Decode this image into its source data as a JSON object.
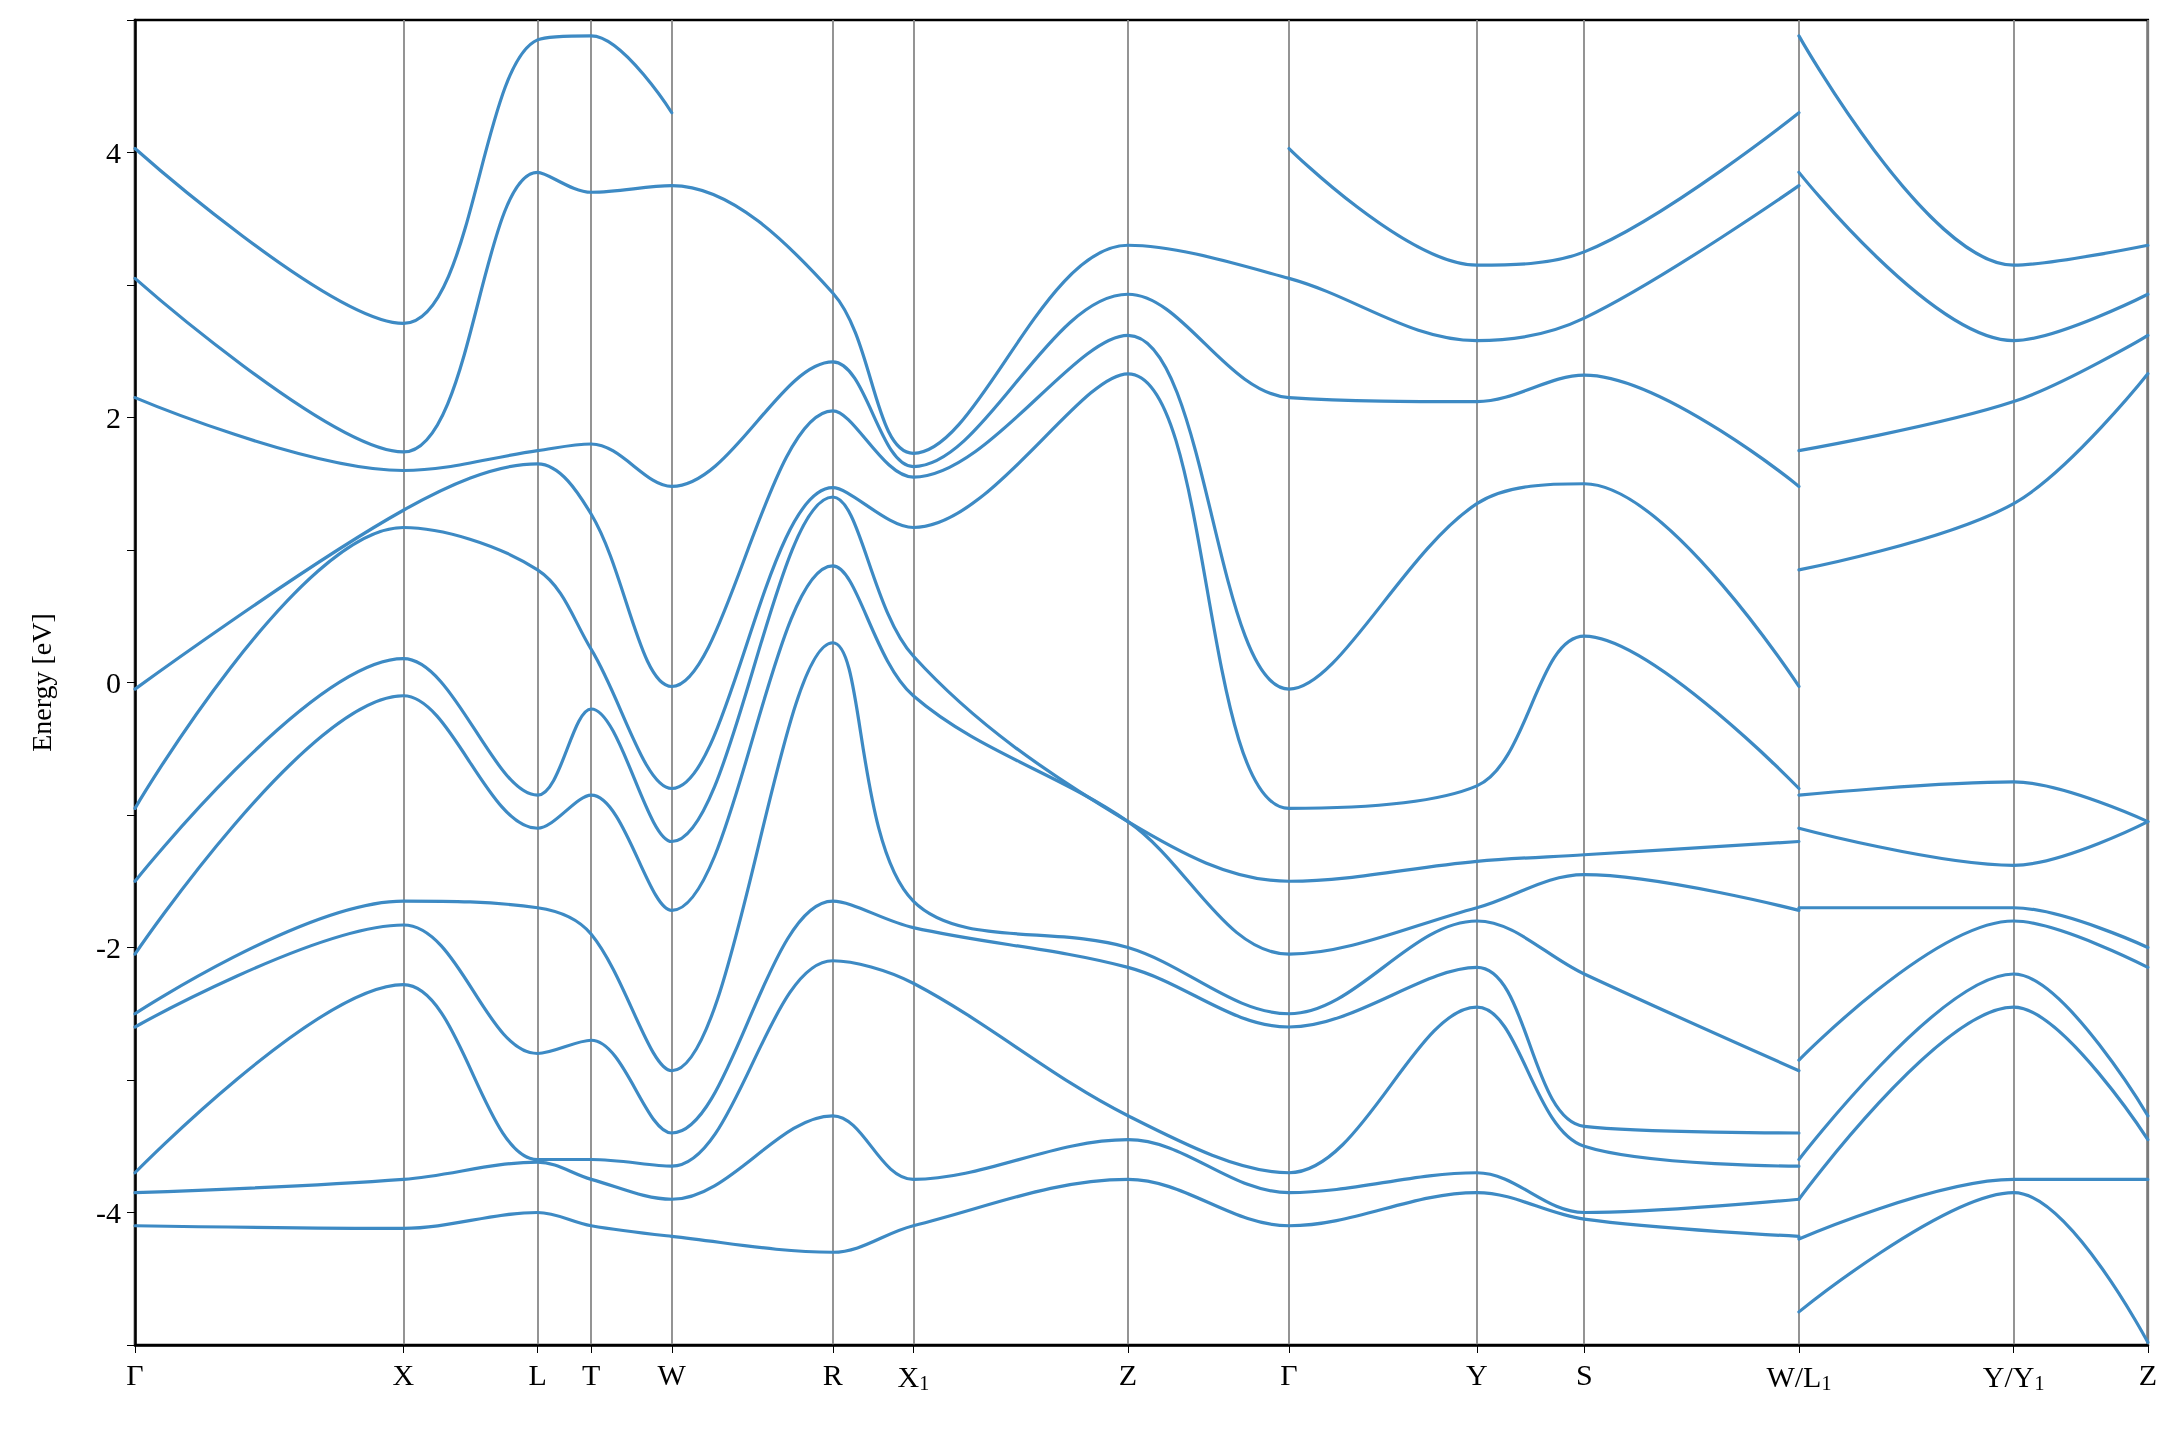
{
  "chart_data": {
    "type": "line",
    "ylabel": "Energy [eV]",
    "ylim": [
      -5,
      5
    ],
    "categories": [
      "Γ",
      null,
      null,
      null,
      null,
      null,
      null,
      null,
      null,
      null,
      "X",
      null,
      null,
      null,
      null,
      "L",
      null,
      "T",
      null,
      null,
      "W",
      null,
      null,
      null,
      null,
      null,
      "R",
      null,
      null,
      "X$_{1}$",
      null,
      null,
      null,
      null,
      null,
      null,
      null,
      "Z",
      null,
      null,
      null,
      null,
      null,
      "Γ",
      null,
      null,
      null,
      null,
      null,
      null,
      "Y",
      null,
      null,
      null,
      "S",
      null,
      null,
      null,
      null,
      null,
      null,
      null,
      "W/L$_{1}$",
      null,
      null,
      null,
      null,
      null,
      null,
      null,
      "Y/Y$_{1}$",
      null,
      null,
      null,
      null,
      "Z"
    ],
    "yticks": [
      {
        "value": -5,
        "label": null
      },
      -4,
      {
        "value": -3,
        "label": null
      },
      -2,
      {
        "value": -1,
        "label": null
      },
      0,
      {
        "value": 1,
        "label": null
      },
      2,
      {
        "value": 3,
        "label": null
      },
      4,
      {
        "value": 5,
        "label": null
      }
    ],
    "grid": "x",
    "marker": "none",
    "line_style": "solid",
    "series": [
      {
        "color": "#3d8ac4",
        "values": [
          -4.1,
          null,
          null,
          null,
          null,
          null,
          null,
          null,
          null,
          null,
          -4.12,
          null,
          null,
          null,
          null,
          -4.0,
          null,
          -4.1,
          null,
          null,
          -4.18,
          null,
          null,
          null,
          null,
          null,
          -4.3,
          null,
          null,
          -4.1,
          null,
          null,
          null,
          null,
          null,
          null,
          null,
          -3.75,
          null,
          null,
          null,
          null,
          null,
          -4.1,
          null,
          null,
          null,
          null,
          null,
          null,
          -3.85,
          null,
          null,
          null,
          -4.05,
          null,
          null,
          null,
          null,
          null,
          null,
          null,
          -4.18,
          null,
          null,
          null,
          null,
          null,
          null,
          null,
          null,
          null,
          null,
          null,
          null,
          null
        ]
      },
      {
        "color": "#3d8ac4",
        "values": [
          -3.85,
          null,
          null,
          null,
          null,
          null,
          null,
          null,
          null,
          null,
          -3.75,
          null,
          null,
          null,
          null,
          -3.62,
          null,
          -3.75,
          null,
          null,
          -3.9,
          null,
          null,
          null,
          null,
          null,
          -3.27,
          null,
          null,
          -3.75,
          null,
          null,
          null,
          null,
          null,
          null,
          null,
          -3.45,
          null,
          null,
          null,
          null,
          null,
          -3.85,
          null,
          null,
          null,
          null,
          null,
          null,
          -3.7,
          null,
          null,
          null,
          -4.0,
          null,
          null,
          null,
          null,
          null,
          null,
          null,
          -3.9,
          null,
          null,
          null,
          null,
          null,
          null,
          null,
          null,
          null,
          null,
          null,
          null,
          null
        ]
      },
      {
        "color": "#3d8ac4",
        "values": [
          -3.7,
          null,
          null,
          null,
          null,
          null,
          null,
          null,
          null,
          null,
          -2.28,
          null,
          null,
          null,
          null,
          -3.6,
          null,
          -3.6,
          null,
          null,
          -3.65,
          null,
          null,
          null,
          null,
          null,
          -2.1,
          null,
          null,
          -2.27,
          null,
          null,
          null,
          null,
          null,
          null,
          null,
          -3.27,
          null,
          null,
          null,
          null,
          null,
          -3.7,
          null,
          null,
          null,
          null,
          null,
          null,
          -2.45,
          null,
          null,
          null,
          -3.5,
          null,
          null,
          null,
          null,
          null,
          null,
          null,
          -3.65,
          null,
          null,
          null,
          null,
          null,
          null,
          null,
          null,
          null,
          null,
          null,
          null,
          null
        ]
      },
      {
        "color": "#3d8ac4",
        "values": [
          -2.6,
          null,
          null,
          null,
          null,
          null,
          null,
          null,
          null,
          null,
          -1.83,
          null,
          null,
          null,
          null,
          -2.8,
          null,
          -2.7,
          null,
          null,
          -3.4,
          null,
          null,
          null,
          null,
          null,
          -1.65,
          null,
          null,
          -1.85,
          null,
          null,
          null,
          null,
          null,
          null,
          null,
          -2.15,
          null,
          null,
          null,
          null,
          null,
          -2.6,
          null,
          null,
          null,
          null,
          null,
          null,
          -2.15,
          null,
          null,
          null,
          -3.35,
          null,
          null,
          null,
          null,
          null,
          null,
          null,
          -3.4,
          null,
          null,
          null,
          null,
          null,
          null,
          null,
          null,
          null,
          null,
          null,
          null,
          null
        ]
      },
      {
        "color": "#3d8ac4",
        "values": [
          -2.5,
          null,
          null,
          null,
          null,
          null,
          null,
          null,
          null,
          null,
          -1.65,
          null,
          null,
          null,
          null,
          -1.7,
          null,
          -1.9,
          null,
          null,
          -2.93,
          null,
          null,
          null,
          null,
          null,
          0.3,
          null,
          null,
          -1.65,
          null,
          null,
          null,
          null,
          null,
          null,
          null,
          -2.0,
          null,
          null,
          null,
          null,
          null,
          -2.5,
          null,
          null,
          null,
          null,
          null,
          null,
          -1.8,
          null,
          null,
          null,
          -2.2,
          null,
          null,
          null,
          null,
          null,
          null,
          null,
          -2.93,
          null,
          null,
          null,
          null,
          null,
          null,
          null,
          null,
          null,
          null,
          null,
          null,
          null
        ]
      },
      {
        "color": "#3d8ac4",
        "values": [
          -2.05,
          null,
          null,
          null,
          null,
          null,
          null,
          null,
          null,
          null,
          -0.1,
          null,
          null,
          null,
          null,
          -1.1,
          null,
          -0.85,
          null,
          null,
          -1.72,
          null,
          null,
          null,
          null,
          null,
          0.88,
          null,
          null,
          -0.1,
          null,
          null,
          null,
          null,
          null,
          null,
          null,
          -1.05,
          null,
          null,
          null,
          null,
          null,
          -2.05,
          null,
          null,
          null,
          null,
          null,
          null,
          -1.7,
          null,
          null,
          null,
          -1.45,
          null,
          null,
          null,
          null,
          null,
          null,
          null,
          -1.72,
          null,
          null,
          null,
          null,
          null,
          null,
          null,
          null,
          null,
          null,
          null,
          null,
          null
        ]
      },
      {
        "color": "#3d8ac4",
        "values": [
          -1.5,
          null,
          null,
          null,
          null,
          null,
          null,
          null,
          null,
          null,
          0.18,
          null,
          null,
          null,
          null,
          -0.85,
          null,
          -0.2,
          null,
          null,
          -1.2,
          null,
          null,
          null,
          null,
          null,
          1.4,
          null,
          null,
          0.2,
          null,
          null,
          null,
          null,
          null,
          null,
          null,
          -1.05,
          null,
          null,
          null,
          null,
          null,
          -1.5,
          null,
          null,
          null,
          null,
          null,
          null,
          -1.35,
          null,
          null,
          null,
          -1.3,
          null,
          null,
          null,
          null,
          null,
          null,
          null,
          -1.2,
          null,
          null,
          null,
          null,
          null,
          null,
          null,
          null,
          null,
          null,
          null,
          null,
          null
        ]
      },
      {
        "color": "#3d8ac4",
        "values": [
          -0.95,
          null,
          null,
          null,
          null,
          null,
          null,
          null,
          null,
          null,
          1.17,
          null,
          null,
          null,
          null,
          0.85,
          null,
          0.25,
          null,
          null,
          -0.8,
          null,
          null,
          null,
          null,
          null,
          1.47,
          null,
          null,
          1.17,
          null,
          null,
          null,
          null,
          null,
          null,
          null,
          2.33,
          null,
          null,
          null,
          null,
          null,
          -0.95,
          null,
          null,
          null,
          null,
          null,
          null,
          -0.78,
          null,
          null,
          null,
          0.35,
          null,
          null,
          null,
          null,
          null,
          null,
          null,
          -0.8,
          null,
          null,
          null,
          null,
          null,
          null,
          null,
          null,
          null,
          null,
          null,
          null,
          null
        ]
      },
      {
        "color": "#3d8ac4",
        "values": [
          -0.05,
          null,
          null,
          null,
          null,
          null,
          null,
          null,
          null,
          null,
          1.3,
          null,
          null,
          null,
          null,
          1.65,
          null,
          1.27,
          null,
          null,
          -0.03,
          null,
          null,
          null,
          null,
          null,
          2.05,
          null,
          null,
          1.55,
          null,
          null,
          null,
          null,
          null,
          null,
          null,
          2.62,
          null,
          null,
          null,
          null,
          null,
          -0.05,
          null,
          null,
          null,
          null,
          null,
          null,
          1.35,
          null,
          null,
          null,
          1.5,
          null,
          null,
          null,
          null,
          null,
          null,
          null,
          -0.03,
          null,
          null,
          null,
          null,
          null,
          null,
          null,
          null,
          null,
          null,
          null,
          null,
          null
        ]
      },
      {
        "color": "#3d8ac4",
        "values": [
          2.15,
          null,
          null,
          null,
          null,
          null,
          null,
          null,
          null,
          null,
          1.6,
          null,
          null,
          null,
          null,
          1.75,
          null,
          1.8,
          null,
          null,
          1.48,
          null,
          null,
          null,
          null,
          null,
          2.42,
          null,
          null,
          1.63,
          null,
          null,
          null,
          null,
          null,
          null,
          null,
          2.93,
          null,
          null,
          null,
          null,
          null,
          2.15,
          null,
          null,
          null,
          null,
          null,
          null,
          2.12,
          null,
          null,
          null,
          2.32,
          null,
          null,
          null,
          null,
          null,
          null,
          null,
          1.48,
          null,
          null,
          null,
          null,
          null,
          null,
          null,
          null,
          null,
          null,
          null,
          null,
          null
        ]
      },
      {
        "color": "#3d8ac4",
        "values": [
          3.05,
          null,
          null,
          null,
          null,
          null,
          null,
          null,
          null,
          null,
          1.74,
          null,
          null,
          null,
          null,
          3.85,
          null,
          3.7,
          null,
          null,
          3.75,
          null,
          null,
          null,
          null,
          null,
          2.94,
          null,
          null,
          1.73,
          null,
          null,
          null,
          null,
          null,
          null,
          null,
          3.3,
          null,
          null,
          null,
          null,
          null,
          3.05,
          null,
          null,
          null,
          null,
          null,
          null,
          2.58,
          null,
          null,
          null,
          2.75,
          null,
          null,
          null,
          null,
          null,
          null,
          null,
          3.75,
          null,
          null,
          null,
          null,
          null,
          null,
          null,
          null,
          null,
          null,
          null,
          null,
          null
        ]
      },
      {
        "color": "#3d8ac4",
        "values": [
          4.03,
          null,
          null,
          null,
          null,
          null,
          null,
          null,
          null,
          null,
          2.71,
          null,
          null,
          null,
          null,
          4.85,
          null,
          4.88,
          null,
          null,
          4.3,
          null,
          null,
          null,
          null,
          null,
          null,
          null,
          null,
          null,
          null,
          null,
          null,
          null,
          null,
          null,
          null,
          null,
          null,
          null,
          null,
          null,
          null,
          null,
          null,
          null,
          null,
          null,
          null,
          null,
          null,
          null,
          null,
          null,
          null,
          null,
          null,
          null,
          null,
          null,
          null,
          null,
          null,
          null,
          null,
          null,
          null,
          null,
          null,
          null,
          null,
          null,
          null,
          null,
          null,
          null
        ]
      },
      {
        "color": "#3d8ac4",
        "values": [
          null,
          null,
          null,
          null,
          null,
          null,
          null,
          null,
          null,
          null,
          null,
          null,
          null,
          null,
          null,
          null,
          null,
          null,
          null,
          null,
          null,
          null,
          null,
          null,
          null,
          null,
          null,
          null,
          null,
          null,
          null,
          null,
          null,
          null,
          null,
          null,
          null,
          null,
          null,
          null,
          null,
          null,
          null,
          4.03,
          null,
          null,
          null,
          null,
          null,
          null,
          3.15,
          null,
          null,
          null,
          3.25,
          null,
          null,
          null,
          null,
          null,
          null,
          null,
          4.3,
          null,
          null,
          null,
          null,
          null,
          null,
          null,
          null,
          null,
          null,
          null,
          null,
          null
        ]
      },
      {
        "color": "#3d8ac4",
        "values": [
          null,
          null,
          null,
          null,
          null,
          null,
          null,
          null,
          null,
          null,
          null,
          null,
          null,
          null,
          null,
          null,
          null,
          null,
          null,
          null,
          null,
          null,
          null,
          null,
          null,
          null,
          null,
          null,
          null,
          null,
          null,
          null,
          null,
          null,
          null,
          null,
          null,
          null,
          null,
          null,
          null,
          null,
          null,
          null,
          null,
          null,
          null,
          null,
          null,
          null,
          null,
          null,
          null,
          null,
          null,
          null,
          null,
          null,
          null,
          null,
          null,
          null,
          -4.75,
          null,
          null,
          null,
          null,
          null,
          null,
          null,
          -3.85,
          null,
          null,
          null,
          null,
          -4.98
        ]
      },
      {
        "color": "#3d8ac4",
        "values": [
          null,
          null,
          null,
          null,
          null,
          null,
          null,
          null,
          null,
          null,
          null,
          null,
          null,
          null,
          null,
          null,
          null,
          null,
          null,
          null,
          null,
          null,
          null,
          null,
          null,
          null,
          null,
          null,
          null,
          null,
          null,
          null,
          null,
          null,
          null,
          null,
          null,
          null,
          null,
          null,
          null,
          null,
          null,
          null,
          null,
          null,
          null,
          null,
          null,
          null,
          null,
          null,
          null,
          null,
          null,
          null,
          null,
          null,
          null,
          null,
          null,
          null,
          -4.2,
          null,
          null,
          null,
          null,
          null,
          null,
          null,
          -3.75,
          null,
          null,
          null,
          null,
          -3.75
        ]
      },
      {
        "color": "#3d8ac4",
        "values": [
          null,
          null,
          null,
          null,
          null,
          null,
          null,
          null,
          null,
          null,
          null,
          null,
          null,
          null,
          null,
          null,
          null,
          null,
          null,
          null,
          null,
          null,
          null,
          null,
          null,
          null,
          null,
          null,
          null,
          null,
          null,
          null,
          null,
          null,
          null,
          null,
          null,
          null,
          null,
          null,
          null,
          null,
          null,
          null,
          null,
          null,
          null,
          null,
          null,
          null,
          null,
          null,
          null,
          null,
          null,
          null,
          null,
          null,
          null,
          null,
          null,
          null,
          -3.9,
          null,
          null,
          null,
          null,
          null,
          null,
          null,
          -2.45,
          null,
          null,
          null,
          null,
          -3.45
        ]
      },
      {
        "color": "#3d8ac4",
        "values": [
          null,
          null,
          null,
          null,
          null,
          null,
          null,
          null,
          null,
          null,
          null,
          null,
          null,
          null,
          null,
          null,
          null,
          null,
          null,
          null,
          null,
          null,
          null,
          null,
          null,
          null,
          null,
          null,
          null,
          null,
          null,
          null,
          null,
          null,
          null,
          null,
          null,
          null,
          null,
          null,
          null,
          null,
          null,
          null,
          null,
          null,
          null,
          null,
          null,
          null,
          null,
          null,
          null,
          null,
          null,
          null,
          null,
          null,
          null,
          null,
          null,
          null,
          -3.6,
          null,
          null,
          null,
          null,
          null,
          null,
          null,
          -2.2,
          null,
          null,
          null,
          null,
          -3.27
        ]
      },
      {
        "color": "#3d8ac4",
        "values": [
          null,
          null,
          null,
          null,
          null,
          null,
          null,
          null,
          null,
          null,
          null,
          null,
          null,
          null,
          null,
          null,
          null,
          null,
          null,
          null,
          null,
          null,
          null,
          null,
          null,
          null,
          null,
          null,
          null,
          null,
          null,
          null,
          null,
          null,
          null,
          null,
          null,
          null,
          null,
          null,
          null,
          null,
          null,
          null,
          null,
          null,
          null,
          null,
          null,
          null,
          null,
          null,
          null,
          null,
          null,
          null,
          null,
          null,
          null,
          null,
          null,
          null,
          -2.85,
          null,
          null,
          null,
          null,
          null,
          null,
          null,
          -1.8,
          null,
          null,
          null,
          null,
          -2.15
        ]
      },
      {
        "color": "#3d8ac4",
        "values": [
          null,
          null,
          null,
          null,
          null,
          null,
          null,
          null,
          null,
          null,
          null,
          null,
          null,
          null,
          null,
          null,
          null,
          null,
          null,
          null,
          null,
          null,
          null,
          null,
          null,
          null,
          null,
          null,
          null,
          null,
          null,
          null,
          null,
          null,
          null,
          null,
          null,
          null,
          null,
          null,
          null,
          null,
          null,
          null,
          null,
          null,
          null,
          null,
          null,
          null,
          null,
          null,
          null,
          null,
          null,
          null,
          null,
          null,
          null,
          null,
          null,
          null,
          -1.7,
          null,
          null,
          null,
          null,
          null,
          null,
          null,
          -1.7,
          null,
          null,
          null,
          null,
          -2.0
        ]
      },
      {
        "color": "#3d8ac4",
        "values": [
          null,
          null,
          null,
          null,
          null,
          null,
          null,
          null,
          null,
          null,
          null,
          null,
          null,
          null,
          null,
          null,
          null,
          null,
          null,
          null,
          null,
          null,
          null,
          null,
          null,
          null,
          null,
          null,
          null,
          null,
          null,
          null,
          null,
          null,
          null,
          null,
          null,
          null,
          null,
          null,
          null,
          null,
          null,
          null,
          null,
          null,
          null,
          null,
          null,
          null,
          null,
          null,
          null,
          null,
          null,
          null,
          null,
          null,
          null,
          null,
          null,
          null,
          -1.1,
          null,
          null,
          null,
          null,
          null,
          null,
          null,
          -1.38,
          null,
          null,
          null,
          null,
          -1.05
        ]
      },
      {
        "color": "#3d8ac4",
        "values": [
          null,
          null,
          null,
          null,
          null,
          null,
          null,
          null,
          null,
          null,
          null,
          null,
          null,
          null,
          null,
          null,
          null,
          null,
          null,
          null,
          null,
          null,
          null,
          null,
          null,
          null,
          null,
          null,
          null,
          null,
          null,
          null,
          null,
          null,
          null,
          null,
          null,
          null,
          null,
          null,
          null,
          null,
          null,
          null,
          null,
          null,
          null,
          null,
          null,
          null,
          null,
          null,
          null,
          null,
          null,
          null,
          null,
          null,
          null,
          null,
          null,
          null,
          -0.85,
          null,
          null,
          null,
          null,
          null,
          null,
          null,
          -0.75,
          null,
          null,
          null,
          null,
          -1.05
        ]
      },
      {
        "color": "#3d8ac4",
        "values": [
          null,
          null,
          null,
          null,
          null,
          null,
          null,
          null,
          null,
          null,
          null,
          null,
          null,
          null,
          null,
          null,
          null,
          null,
          null,
          null,
          null,
          null,
          null,
          null,
          null,
          null,
          null,
          null,
          null,
          null,
          null,
          null,
          null,
          null,
          null,
          null,
          null,
          null,
          null,
          null,
          null,
          null,
          null,
          null,
          null,
          null,
          null,
          null,
          null,
          null,
          null,
          null,
          null,
          null,
          null,
          null,
          null,
          null,
          null,
          null,
          null,
          null,
          0.85,
          null,
          null,
          null,
          null,
          null,
          null,
          null,
          1.35,
          null,
          null,
          null,
          null,
          2.33
        ]
      },
      {
        "color": "#3d8ac4",
        "values": [
          null,
          null,
          null,
          null,
          null,
          null,
          null,
          null,
          null,
          null,
          null,
          null,
          null,
          null,
          null,
          null,
          null,
          null,
          null,
          null,
          null,
          null,
          null,
          null,
          null,
          null,
          null,
          null,
          null,
          null,
          null,
          null,
          null,
          null,
          null,
          null,
          null,
          null,
          null,
          null,
          null,
          null,
          null,
          null,
          null,
          null,
          null,
          null,
          null,
          null,
          null,
          null,
          null,
          null,
          null,
          null,
          null,
          null,
          null,
          null,
          null,
          null,
          1.75,
          null,
          null,
          null,
          null,
          null,
          null,
          null,
          2.12,
          null,
          null,
          null,
          null,
          2.62
        ]
      },
      {
        "color": "#3d8ac4",
        "values": [
          null,
          null,
          null,
          null,
          null,
          null,
          null,
          null,
          null,
          null,
          null,
          null,
          null,
          null,
          null,
          null,
          null,
          null,
          null,
          null,
          null,
          null,
          null,
          null,
          null,
          null,
          null,
          null,
          null,
          null,
          null,
          null,
          null,
          null,
          null,
          null,
          null,
          null,
          null,
          null,
          null,
          null,
          null,
          null,
          null,
          null,
          null,
          null,
          null,
          null,
          null,
          null,
          null,
          null,
          null,
          null,
          null,
          null,
          null,
          null,
          null,
          null,
          3.85,
          null,
          null,
          null,
          null,
          null,
          null,
          null,
          2.58,
          null,
          null,
          null,
          null,
          2.93
        ]
      },
      {
        "color": "#3d8ac4",
        "values": [
          null,
          null,
          null,
          null,
          null,
          null,
          null,
          null,
          null,
          null,
          null,
          null,
          null,
          null,
          null,
          null,
          null,
          null,
          null,
          null,
          null,
          null,
          null,
          null,
          null,
          null,
          null,
          null,
          null,
          null,
          null,
          null,
          null,
          null,
          null,
          null,
          null,
          null,
          null,
          null,
          null,
          null,
          null,
          null,
          null,
          null,
          null,
          null,
          null,
          null,
          null,
          null,
          null,
          null,
          null,
          null,
          null,
          null,
          null,
          null,
          null,
          null,
          4.88,
          null,
          null,
          null,
          null,
          null,
          null,
          null,
          3.15,
          null,
          null,
          null,
          null,
          3.3
        ]
      }
    ]
  }
}
